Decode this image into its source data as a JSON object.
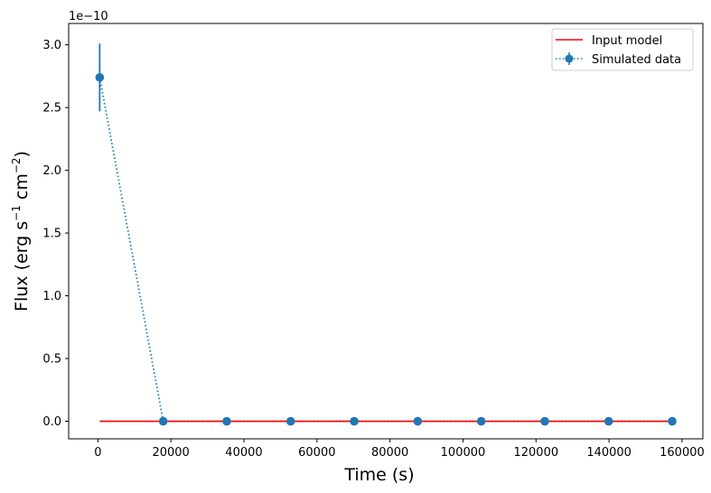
{
  "chart_data": {
    "type": "line",
    "title": "",
    "xlabel": "Time (s)",
    "ylabel_main": "Flux (erg s",
    "ylabel_parts": {
      "s_exp": "−1",
      "mid": " cm",
      "cm_exp": "−2",
      "end": ")"
    },
    "y_offset_label": "1e−10",
    "xlim": [
      -8000,
      165700
    ],
    "ylim": [
      -0.14,
      3.17
    ],
    "y_scale_factor": "1e-10",
    "x_ticks": [
      0,
      20000,
      40000,
      60000,
      80000,
      100000,
      120000,
      140000,
      160000
    ],
    "x_tick_labels": [
      "0",
      "20000",
      "40000",
      "60000",
      "80000",
      "100000",
      "120000",
      "140000",
      "160000"
    ],
    "y_ticks": [
      0.0,
      0.5,
      1.0,
      1.5,
      2.0,
      2.5,
      3.0
    ],
    "y_tick_labels": [
      "0.0",
      "0.5",
      "1.0",
      "1.5",
      "2.0",
      "2.5",
      "3.0"
    ],
    "grid": false,
    "legend_position": "top-right",
    "legend": [
      "Input model",
      "Simulated data"
    ],
    "series": [
      {
        "name": "Input model",
        "style": "solid",
        "color": "#ff0000",
        "x": [
          500,
          157000
        ],
        "y": [
          0.0,
          0.0
        ]
      },
      {
        "name": "Simulated data",
        "style": "dotted-markers",
        "color": "#1f77b4",
        "x": [
          500,
          17900,
          35300,
          52800,
          70200,
          87600,
          105000,
          122400,
          139900,
          157300
        ],
        "y": [
          2.74,
          0.0,
          0.0,
          0.0,
          0.0,
          0.0,
          0.0,
          0.0,
          0.0,
          0.0
        ],
        "yerr": [
          0.27,
          0,
          0,
          0,
          0,
          0,
          0,
          0,
          0,
          0
        ]
      }
    ]
  }
}
